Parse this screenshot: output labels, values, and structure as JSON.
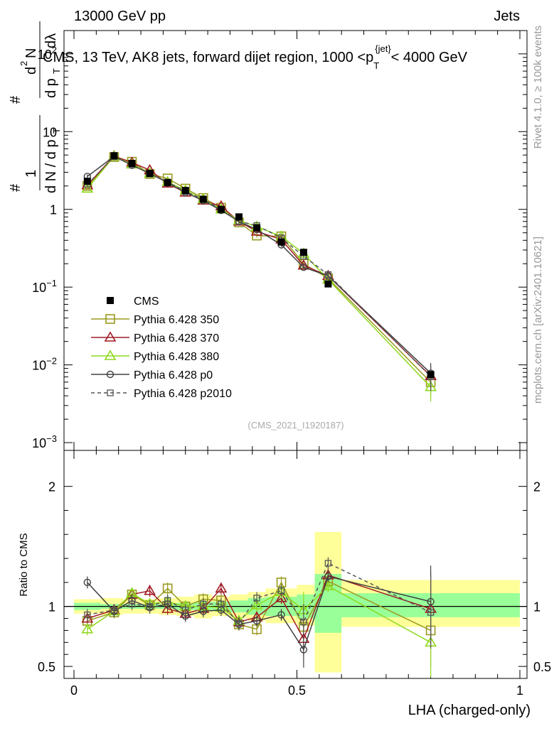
{
  "header": {
    "left": "13000 GeV pp",
    "right": "Jets"
  },
  "plot_title": "CMS, 13 TeV, AK8 jets, forward dijet region, 1000 <p_T^{jet}< 4000 GeV",
  "side_text": {
    "rivet": "Rivet 4.1.0, ≥ 100k events",
    "mcplots": "mcplots.cern.ch [arXiv:2401.10621]"
  },
  "watermark": "(CMS_2021_I1920187)",
  "chart_data": [
    {
      "type": "line",
      "panel": "main",
      "title": "CMS, 13 TeV, AK8 jets, forward dijet region, 1000 <p_T^{jet}< 4000 GeV",
      "xlabel": "LHA (charged-only)",
      "ylabel": "1/dN/dpT  d²N/dpT dλ",
      "yscale": "log",
      "xlim": [
        0,
        1
      ],
      "ylim": [
        0.001,
        150
      ],
      "yticks": [
        {
          "v": 0.001,
          "b": "10",
          "e": "−3"
        },
        {
          "v": 0.01,
          "b": "10",
          "e": "−2"
        },
        {
          "v": 0.1,
          "b": "10",
          "e": "−1"
        },
        {
          "v": 1,
          "b": "1",
          "e": ""
        },
        {
          "v": 10,
          "b": "10",
          "e": ""
        },
        {
          "v": 100,
          "b": "10",
          "e": "2"
        }
      ],
      "x": [
        0.03,
        0.09,
        0.13,
        0.17,
        0.21,
        0.25,
        0.29,
        0.33,
        0.37,
        0.41,
        0.465,
        0.515,
        0.57,
        0.8
      ],
      "data": {
        "name": "CMS",
        "values": [
          2.3,
          4.9,
          3.9,
          2.9,
          2.2,
          1.75,
          1.35,
          1.0,
          0.8,
          0.58,
          0.38,
          0.28,
          0.11,
          0.0075
        ]
      },
      "series": [
        {
          "name": "Pythia 6.428 350",
          "color": "#9a9a1e",
          "marker": "square",
          "dashed": false,
          "values": [
            2.0,
            4.7,
            4.1,
            2.85,
            2.5,
            1.85,
            1.4,
            1.05,
            0.68,
            0.46,
            0.45,
            0.2,
            0.13,
            0.006
          ]
        },
        {
          "name": "Pythia 6.428 370",
          "color": "#a01c25",
          "marker": "triangle",
          "dashed": false,
          "values": [
            2.05,
            4.85,
            4.0,
            3.2,
            2.15,
            1.65,
            1.3,
            1.1,
            0.7,
            0.52,
            0.41,
            0.19,
            0.14,
            0.0072
          ]
        },
        {
          "name": "Pythia 6.428 380",
          "color": "#8ed81e",
          "marker": "triangle",
          "dashed": false,
          "values": [
            1.85,
            4.8,
            3.8,
            2.9,
            2.25,
            1.75,
            1.35,
            1.0,
            0.72,
            0.6,
            0.45,
            0.27,
            0.125,
            0.0052
          ]
        },
        {
          "name": "Pythia 6.428 p0",
          "color": "#404040",
          "marker": "circle",
          "dashed": false,
          "values": [
            2.65,
            4.8,
            3.7,
            2.9,
            2.2,
            1.65,
            1.3,
            0.97,
            0.7,
            0.55,
            0.35,
            0.18,
            0.14,
            0.0078
          ]
        },
        {
          "name": "Pythia 6.428 p2010",
          "color": "#555555",
          "marker": "square-small",
          "dashed": true,
          "values": [
            2.1,
            4.75,
            3.75,
            2.85,
            2.25,
            1.7,
            1.35,
            1.0,
            0.7,
            0.62,
            0.43,
            0.25,
            0.145,
            0.0071
          ]
        }
      ]
    },
    {
      "type": "line",
      "panel": "ratio",
      "xlabel": "LHA (charged-only)",
      "ylabel": "Ratio to CMS",
      "xlim": [
        0,
        1
      ],
      "ylim": [
        0.4,
        2.3
      ],
      "yticks": [
        0.5,
        1,
        2
      ],
      "xticks": [
        0,
        0.5,
        1
      ],
      "xtick_labels": [
        "0",
        "0.5",
        "1"
      ],
      "bands": [
        {
          "x0": 0.0,
          "x1": 0.06,
          "stat": [
            0.97,
            1.03
          ],
          "total": [
            0.94,
            1.06
          ]
        },
        {
          "x0": 0.06,
          "x1": 0.11,
          "stat": [
            0.98,
            1.02
          ],
          "total": [
            0.93,
            1.07
          ]
        },
        {
          "x0": 0.11,
          "x1": 0.15,
          "stat": [
            0.98,
            1.02
          ],
          "total": [
            0.94,
            1.06
          ]
        },
        {
          "x0": 0.15,
          "x1": 0.19,
          "stat": [
            0.98,
            1.02
          ],
          "total": [
            0.94,
            1.06
          ]
        },
        {
          "x0": 0.19,
          "x1": 0.23,
          "stat": [
            0.98,
            1.02
          ],
          "total": [
            0.93,
            1.07
          ]
        },
        {
          "x0": 0.23,
          "x1": 0.27,
          "stat": [
            0.97,
            1.03
          ],
          "total": [
            0.92,
            1.08
          ]
        },
        {
          "x0": 0.27,
          "x1": 0.31,
          "stat": [
            0.96,
            1.04
          ],
          "total": [
            0.9,
            1.1
          ]
        },
        {
          "x0": 0.31,
          "x1": 0.35,
          "stat": [
            0.96,
            1.04
          ],
          "total": [
            0.92,
            1.08
          ]
        },
        {
          "x0": 0.35,
          "x1": 0.39,
          "stat": [
            0.95,
            1.05
          ],
          "total": [
            0.9,
            1.1
          ]
        },
        {
          "x0": 0.39,
          "x1": 0.43,
          "stat": [
            0.93,
            1.07
          ],
          "total": [
            0.88,
            1.12
          ]
        },
        {
          "x0": 0.43,
          "x1": 0.5,
          "stat": [
            0.92,
            1.08
          ],
          "total": [
            0.86,
            1.15
          ]
        },
        {
          "x0": 0.5,
          "x1": 0.54,
          "stat": [
            0.9,
            1.1
          ],
          "total": [
            0.84,
            1.18
          ]
        },
        {
          "x0": 0.54,
          "x1": 0.6,
          "stat": [
            0.78,
            1.27
          ],
          "total": [
            0.45,
            1.62
          ]
        },
        {
          "x0": 0.6,
          "x1": 1.0,
          "stat": [
            0.91,
            1.11
          ],
          "total": [
            0.83,
            1.22
          ]
        }
      ],
      "series": [
        {
          "name": "Pythia 6.428 350",
          "values": [
            0.88,
            0.95,
            1.1,
            1.01,
            1.15,
            1.0,
            1.06,
            1.05,
            0.85,
            0.81,
            1.2,
            0.83,
            1.21,
            0.8
          ]
        },
        {
          "name": "Pythia 6.428 370",
          "values": [
            0.9,
            0.97,
            1.1,
            1.13,
            0.98,
            0.94,
            0.98,
            1.15,
            0.87,
            0.91,
            1.07,
            0.73,
            1.26,
            0.98
          ]
        },
        {
          "name": "Pythia 6.428 380",
          "values": [
            0.81,
            0.96,
            1.11,
            1.02,
            1.04,
            1.0,
            1.0,
            0.99,
            0.88,
            1.01,
            1.12,
            0.97,
            1.17,
            0.7
          ]
        },
        {
          "name": "Pythia 6.428 p0",
          "values": [
            1.2,
            0.96,
            1.05,
            0.99,
            1.02,
            0.92,
            0.96,
            0.97,
            0.85,
            0.88,
            0.93,
            0.64,
            1.25,
            1.04
          ]
        },
        {
          "name": "Pythia 6.428 p2010",
          "values": [
            0.93,
            0.97,
            1.02,
            1.0,
            1.05,
            0.97,
            1.02,
            1.02,
            0.86,
            1.07,
            1.13,
            0.87,
            1.36,
            0.95
          ]
        }
      ]
    }
  ]
}
